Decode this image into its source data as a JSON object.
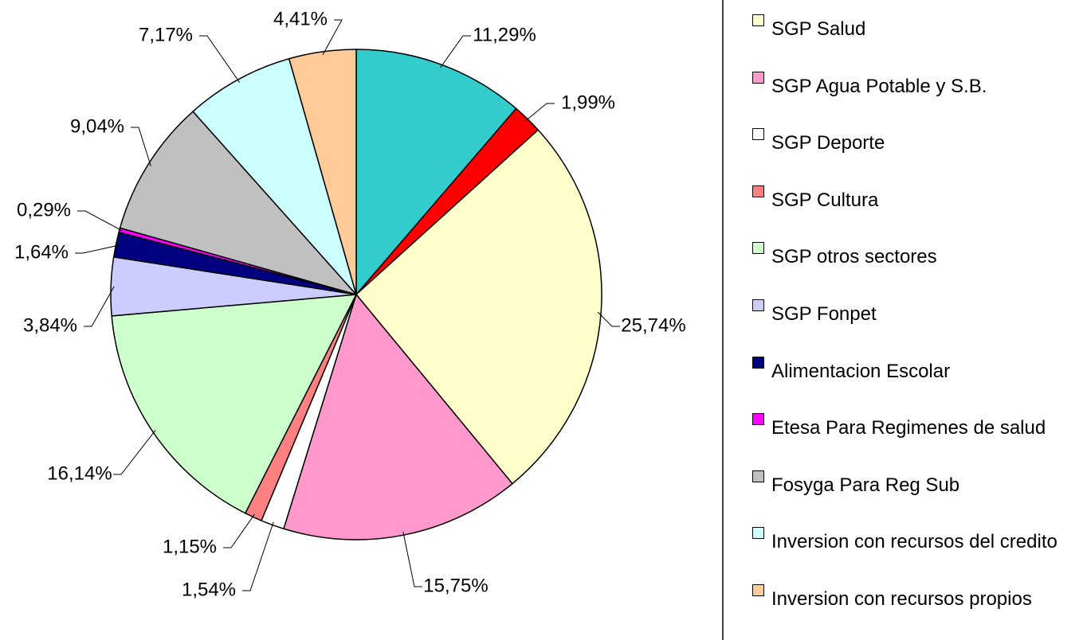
{
  "chart_data": {
    "type": "pie",
    "categories": [
      null,
      null,
      "SGP Salud",
      "SGP Agua Potable y S.B.",
      "SGP Deporte",
      "SGP Cultura",
      "SGP otros sectores",
      "SGP  Fonpet",
      "Alimentacion Escolar",
      "Etesa Para Regimenes de salud",
      "Fosyga Para Reg Sub",
      "Inversion con recursos del credito",
      "Inversion con recursos propios"
    ],
    "values": [
      11.29,
      1.99,
      25.74,
      15.75,
      1.54,
      1.15,
      16.14,
      3.84,
      1.64,
      0.29,
      9.04,
      7.17,
      4.41
    ],
    "value_labels": [
      "11,29%",
      "1,99%",
      "25,74%",
      "15,75%",
      "1,54%",
      "1,15%",
      "16,14%",
      "3,84%",
      "1,64%",
      "0,29%",
      "9,04%",
      "7,17%",
      "4,41%"
    ],
    "colors": [
      "#33cccc",
      "#ff0000",
      "#ffffcc",
      "#ff99cc",
      "#ffffff",
      "#ff8080",
      "#ccffcc",
      "#ccccff",
      "#000080",
      "#ff00ff",
      "#c0c0c0",
      "#ccffff",
      "#ffcc99"
    ]
  }
}
